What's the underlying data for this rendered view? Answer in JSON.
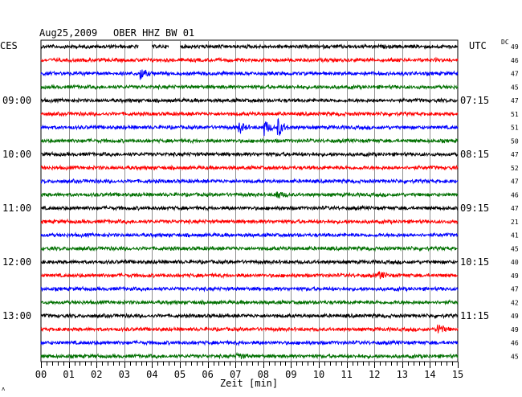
{
  "header": {
    "date": "Aug25,2009",
    "station": "OBER HHZ BW 01",
    "left_zone": "CES",
    "right_zone": "UTC",
    "dc_label": "DC"
  },
  "footer": {
    "x_axis_label": "Zeit [min]",
    "corner_mark": "ʌ"
  },
  "chart_data": {
    "type": "line",
    "title": "OBER HHZ BW 01",
    "xlabel": "Zeit [min]",
    "xlim": [
      0,
      15
    ],
    "x_ticks": [
      "00",
      "01",
      "02",
      "03",
      "04",
      "05",
      "06",
      "07",
      "08",
      "09",
      "10",
      "11",
      "12",
      "13",
      "14",
      "15"
    ],
    "colors_cycle": [
      "#000000",
      "#ff0000",
      "#0000ff",
      "#007000"
    ],
    "grid": true,
    "rows": [
      {
        "index": 0,
        "color": "#000000",
        "dc": "49",
        "gaps": [
          [
            3.5,
            4.0
          ],
          [
            4.6,
            5.0
          ]
        ]
      },
      {
        "index": 1,
        "color": "#ff0000",
        "dc": "46"
      },
      {
        "index": 2,
        "color": "#0000ff",
        "dc": "47",
        "events": [
          {
            "t": 3.6,
            "amp": 7
          }
        ]
      },
      {
        "index": 3,
        "color": "#007000",
        "dc": "45"
      },
      {
        "index": 4,
        "color": "#000000",
        "dc": "47",
        "left_label": "09:00",
        "right_label": "07:15"
      },
      {
        "index": 5,
        "color": "#ff0000",
        "dc": "51"
      },
      {
        "index": 6,
        "color": "#0000ff",
        "dc": "51",
        "events": [
          {
            "t": 7.15,
            "amp": 7
          },
          {
            "t": 8.05,
            "amp": 9
          },
          {
            "t": 8.55,
            "amp": 11
          }
        ]
      },
      {
        "index": 7,
        "color": "#007000",
        "dc": "50"
      },
      {
        "index": 8,
        "color": "#000000",
        "dc": "47",
        "left_label": "10:00",
        "right_label": "08:15"
      },
      {
        "index": 9,
        "color": "#ff0000",
        "dc": "52"
      },
      {
        "index": 10,
        "color": "#0000ff",
        "dc": "47"
      },
      {
        "index": 11,
        "color": "#007000",
        "dc": "46",
        "events": [
          {
            "t": 8.5,
            "amp": 5
          }
        ]
      },
      {
        "index": 12,
        "color": "#000000",
        "dc": "47",
        "left_label": "11:00",
        "right_label": "09:15"
      },
      {
        "index": 13,
        "color": "#ff0000",
        "dc": "21"
      },
      {
        "index": 14,
        "color": "#0000ff",
        "dc": "41"
      },
      {
        "index": 15,
        "color": "#007000",
        "dc": "45"
      },
      {
        "index": 16,
        "color": "#000000",
        "dc": "40",
        "left_label": "12:00",
        "right_label": "10:15"
      },
      {
        "index": 17,
        "color": "#ff0000",
        "dc": "49",
        "events": [
          {
            "t": 12.2,
            "amp": 4
          }
        ]
      },
      {
        "index": 18,
        "color": "#0000ff",
        "dc": "47"
      },
      {
        "index": 19,
        "color": "#007000",
        "dc": "42"
      },
      {
        "index": 20,
        "color": "#000000",
        "dc": "49",
        "left_label": "13:00",
        "right_label": "11:15"
      },
      {
        "index": 21,
        "color": "#ff0000",
        "dc": "49",
        "events": [
          {
            "t": 14.3,
            "amp": 8
          }
        ]
      },
      {
        "index": 22,
        "color": "#0000ff",
        "dc": "46"
      },
      {
        "index": 23,
        "color": "#007000",
        "dc": "45",
        "events": [
          {
            "t": 7.1,
            "amp": 4
          }
        ]
      }
    ]
  }
}
